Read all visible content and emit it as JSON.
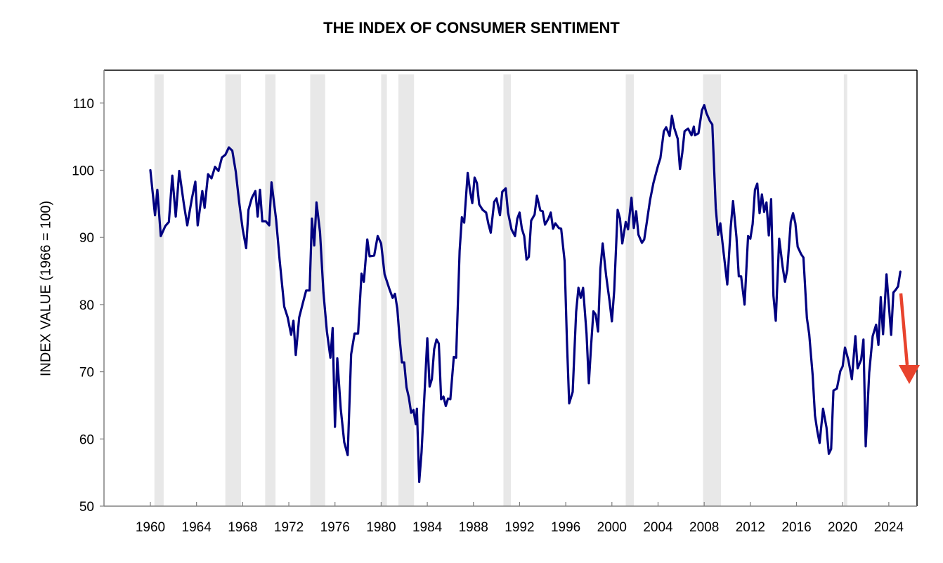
{
  "chart_data": {
    "type": "line",
    "title": "THE INDEX OF CONSUMER SENTIMENT",
    "xlabel": "",
    "ylabel": "INDEX VALUE (1966 = 100)",
    "xlim": [
      1957.9,
      2026.5
    ],
    "ylim": [
      50,
      115
    ],
    "x_ticks": [
      1960,
      1964,
      1968,
      1972,
      1976,
      1980,
      1984,
      1988,
      1992,
      1996,
      2000,
      2004,
      2008,
      2012,
      2016,
      2020,
      2024
    ],
    "x_tick_labels": [
      "1960",
      "1964",
      "1968",
      "1972",
      "1976",
      "1980",
      "1984",
      "1988",
      "1992",
      "1996",
      "2000",
      "2004",
      "2008",
      "2012",
      "2016",
      "2020",
      "2024"
    ],
    "y_ticks": [
      50,
      60,
      70,
      80,
      90,
      100,
      110
    ],
    "y_tick_labels": [
      "50",
      "60",
      "70",
      "80",
      "90",
      "100",
      "110"
    ],
    "grid": false,
    "legend": "none",
    "colors": {
      "line": "#000080",
      "recession_band": "#e8e8e8",
      "arrow": "#e8432d",
      "axis": "#808080",
      "frame": "#000000"
    },
    "recession_bands": [
      [
        1960.35,
        1961.15
      ],
      [
        1966.5,
        1967.85
      ],
      [
        1969.95,
        1970.85
      ],
      [
        1973.85,
        1975.15
      ],
      [
        1980.0,
        1980.5
      ],
      [
        1981.5,
        1982.85
      ],
      [
        1990.6,
        1991.25
      ],
      [
        2001.2,
        2001.9
      ],
      [
        2007.9,
        2009.45
      ],
      [
        2020.1,
        2020.4
      ]
    ],
    "annotation": {
      "type": "arrow",
      "direction": "down",
      "from": [
        2024.2,
        81.8
      ],
      "to": [
        2024.9,
        68.3
      ]
    },
    "series": [
      {
        "name": "Index of Consumer Sentiment",
        "points": [
          [
            1960.0,
            100.0
          ],
          [
            1960.4,
            93.3
          ],
          [
            1960.6,
            97.1
          ],
          [
            1960.9,
            90.2
          ],
          [
            1961.3,
            91.7
          ],
          [
            1961.6,
            92.3
          ],
          [
            1961.9,
            99.2
          ],
          [
            1962.2,
            93.1
          ],
          [
            1962.5,
            99.9
          ],
          [
            1962.9,
            95.0
          ],
          [
            1963.2,
            91.8
          ],
          [
            1963.6,
            95.8
          ],
          [
            1963.9,
            98.3
          ],
          [
            1964.1,
            91.8
          ],
          [
            1964.5,
            96.9
          ],
          [
            1964.7,
            94.4
          ],
          [
            1965.0,
            99.4
          ],
          [
            1965.3,
            98.8
          ],
          [
            1965.6,
            100.5
          ],
          [
            1965.9,
            99.9
          ],
          [
            1966.2,
            101.9
          ],
          [
            1966.5,
            102.3
          ],
          [
            1966.8,
            103.4
          ],
          [
            1967.1,
            102.9
          ],
          [
            1967.4,
            99.8
          ],
          [
            1967.7,
            95.2
          ],
          [
            1968.0,
            91.2
          ],
          [
            1968.3,
            88.4
          ],
          [
            1968.5,
            94.1
          ],
          [
            1968.8,
            95.9
          ],
          [
            1969.1,
            96.9
          ],
          [
            1969.3,
            93.1
          ],
          [
            1969.5,
            97.1
          ],
          [
            1969.7,
            92.4
          ],
          [
            1970.0,
            92.4
          ],
          [
            1970.3,
            91.8
          ],
          [
            1970.5,
            98.2
          ],
          [
            1970.9,
            92.6
          ],
          [
            1971.2,
            86.7
          ],
          [
            1971.6,
            79.7
          ],
          [
            1971.9,
            78.1
          ],
          [
            1972.2,
            75.5
          ],
          [
            1972.4,
            77.6
          ],
          [
            1972.6,
            72.5
          ],
          [
            1972.9,
            78.1
          ],
          [
            1973.2,
            80.1
          ],
          [
            1973.5,
            82.1
          ],
          [
            1973.8,
            82.1
          ],
          [
            1974.0,
            92.8
          ],
          [
            1974.2,
            88.8
          ],
          [
            1974.4,
            95.2
          ],
          [
            1974.7,
            90.8
          ],
          [
            1975.0,
            81.8
          ],
          [
            1975.3,
            76.0
          ],
          [
            1975.6,
            72.1
          ],
          [
            1975.8,
            76.5
          ],
          [
            1976.0,
            61.8
          ],
          [
            1976.2,
            72.0
          ],
          [
            1976.5,
            64.5
          ],
          [
            1976.8,
            59.5
          ],
          [
            1977.1,
            57.6
          ],
          [
            1977.4,
            72.6
          ],
          [
            1977.7,
            75.7
          ],
          [
            1978.0,
            75.7
          ],
          [
            1978.3,
            84.6
          ],
          [
            1978.5,
            83.4
          ],
          [
            1978.8,
            89.7
          ],
          [
            1979.0,
            87.2
          ],
          [
            1979.4,
            87.3
          ],
          [
            1979.7,
            90.2
          ],
          [
            1980.0,
            89.1
          ],
          [
            1980.3,
            84.5
          ],
          [
            1980.7,
            82.4
          ],
          [
            1981.0,
            81.0
          ],
          [
            1981.2,
            81.6
          ],
          [
            1981.4,
            79.4
          ],
          [
            1981.6,
            75.0
          ],
          [
            1981.8,
            71.4
          ],
          [
            1982.0,
            71.4
          ],
          [
            1982.2,
            67.7
          ],
          [
            1982.4,
            66.2
          ],
          [
            1982.6,
            63.9
          ],
          [
            1982.8,
            64.3
          ],
          [
            1983.0,
            62.2
          ],
          [
            1983.1,
            64.5
          ],
          [
            1983.3,
            53.6
          ],
          [
            1983.5,
            58.0
          ],
          [
            1983.8,
            68.1
          ],
          [
            1984.0,
            75.0
          ],
          [
            1984.2,
            67.8
          ],
          [
            1984.4,
            68.9
          ],
          [
            1984.6,
            73.4
          ],
          [
            1984.8,
            74.8
          ],
          [
            1985.0,
            74.2
          ],
          [
            1985.2,
            65.9
          ],
          [
            1985.4,
            66.3
          ],
          [
            1985.6,
            64.9
          ],
          [
            1985.8,
            66.0
          ],
          [
            1986.0,
            65.9
          ],
          [
            1986.3,
            72.2
          ],
          [
            1986.5,
            72.1
          ],
          [
            1986.8,
            88.0
          ],
          [
            1987.0,
            93.0
          ],
          [
            1987.2,
            92.2
          ],
          [
            1987.5,
            99.6
          ],
          [
            1987.7,
            97.0
          ],
          [
            1987.9,
            95.1
          ],
          [
            1988.1,
            98.9
          ],
          [
            1988.3,
            98.1
          ],
          [
            1988.5,
            94.9
          ],
          [
            1988.8,
            94.1
          ],
          [
            1989.1,
            93.7
          ],
          [
            1989.3,
            92.0
          ],
          [
            1989.5,
            90.7
          ],
          [
            1989.8,
            95.3
          ],
          [
            1990.0,
            95.8
          ],
          [
            1990.3,
            93.3
          ],
          [
            1990.5,
            96.8
          ],
          [
            1990.8,
            97.3
          ],
          [
            1991.0,
            93.7
          ],
          [
            1991.3,
            91.2
          ],
          [
            1991.6,
            90.2
          ],
          [
            1991.8,
            92.8
          ],
          [
            1992.0,
            93.7
          ],
          [
            1992.2,
            91.3
          ],
          [
            1992.4,
            90.2
          ],
          [
            1992.6,
            86.7
          ],
          [
            1992.8,
            87.1
          ],
          [
            1993.0,
            92.5
          ],
          [
            1993.3,
            93.4
          ],
          [
            1993.5,
            96.2
          ],
          [
            1993.8,
            94.0
          ],
          [
            1994.0,
            93.9
          ],
          [
            1994.2,
            91.9
          ],
          [
            1994.5,
            92.8
          ],
          [
            1994.7,
            93.7
          ],
          [
            1994.9,
            91.3
          ],
          [
            1995.1,
            92.1
          ],
          [
            1995.4,
            91.4
          ],
          [
            1995.6,
            91.3
          ],
          [
            1995.9,
            86.5
          ],
          [
            1996.1,
            74.6
          ],
          [
            1996.3,
            65.3
          ],
          [
            1996.6,
            67.0
          ],
          [
            1996.9,
            78.9
          ],
          [
            1997.1,
            82.5
          ],
          [
            1997.3,
            81.0
          ],
          [
            1997.5,
            82.5
          ],
          [
            1997.8,
            75.7
          ],
          [
            1998.0,
            68.3
          ],
          [
            1998.2,
            73.9
          ],
          [
            1998.4,
            79.0
          ],
          [
            1998.6,
            78.5
          ],
          [
            1998.8,
            76.0
          ],
          [
            1999.0,
            85.3
          ],
          [
            1999.2,
            89.1
          ],
          [
            1999.5,
            84.3
          ],
          [
            1999.8,
            80.5
          ],
          [
            2000.0,
            77.5
          ],
          [
            2000.2,
            82.1
          ],
          [
            2000.5,
            94.1
          ],
          [
            2000.7,
            92.8
          ],
          [
            2000.9,
            89.1
          ],
          [
            2001.2,
            92.3
          ],
          [
            2001.4,
            91.2
          ],
          [
            2001.7,
            95.9
          ],
          [
            2001.9,
            91.4
          ],
          [
            2002.1,
            93.9
          ],
          [
            2002.3,
            90.4
          ],
          [
            2002.6,
            89.2
          ],
          [
            2002.8,
            89.7
          ],
          [
            2003.0,
            92.0
          ],
          [
            2003.3,
            95.5
          ],
          [
            2003.6,
            98.1
          ],
          [
            2004.0,
            100.7
          ],
          [
            2004.2,
            101.8
          ],
          [
            2004.5,
            105.8
          ],
          [
            2004.7,
            106.4
          ],
          [
            2005.0,
            105.1
          ],
          [
            2005.2,
            108.1
          ],
          [
            2005.4,
            106.3
          ],
          [
            2005.7,
            104.7
          ],
          [
            2005.9,
            100.2
          ],
          [
            2006.1,
            102.6
          ],
          [
            2006.3,
            105.8
          ],
          [
            2006.6,
            106.2
          ],
          [
            2006.9,
            105.2
          ],
          [
            2007.1,
            106.5
          ],
          [
            2007.2,
            105.2
          ],
          [
            2007.5,
            105.5
          ],
          [
            2007.8,
            108.9
          ],
          [
            2008.0,
            109.7
          ],
          [
            2008.2,
            108.5
          ],
          [
            2008.5,
            107.3
          ],
          [
            2008.7,
            106.8
          ],
          [
            2009.0,
            94.4
          ],
          [
            2009.2,
            90.4
          ],
          [
            2009.4,
            92.1
          ],
          [
            2009.6,
            89.0
          ],
          [
            2010.0,
            83.0
          ],
          [
            2010.3,
            91.5
          ],
          [
            2010.5,
            95.4
          ],
          [
            2010.8,
            90.0
          ],
          [
            2011.0,
            84.2
          ],
          [
            2011.2,
            84.2
          ],
          [
            2011.5,
            80.0
          ],
          [
            2011.8,
            90.2
          ],
          [
            2012.0,
            89.8
          ],
          [
            2012.2,
            92.0
          ],
          [
            2012.4,
            97.1
          ],
          [
            2012.6,
            98.0
          ],
          [
            2012.8,
            93.6
          ],
          [
            2013.0,
            96.4
          ],
          [
            2013.2,
            93.8
          ],
          [
            2013.4,
            95.2
          ],
          [
            2013.6,
            90.3
          ],
          [
            2013.8,
            95.7
          ],
          [
            2014.0,
            81.3
          ],
          [
            2014.2,
            77.6
          ],
          [
            2014.5,
            89.8
          ],
          [
            2014.8,
            85.6
          ],
          [
            2015.0,
            83.4
          ],
          [
            2015.2,
            85.2
          ],
          [
            2015.5,
            92.3
          ],
          [
            2015.7,
            93.6
          ],
          [
            2015.9,
            92.1
          ],
          [
            2016.1,
            88.6
          ],
          [
            2016.4,
            87.5
          ],
          [
            2016.6,
            87.0
          ],
          [
            2016.9,
            78.0
          ],
          [
            2017.1,
            75.6
          ],
          [
            2017.4,
            69.5
          ],
          [
            2017.6,
            63.5
          ],
          [
            2017.8,
            61.2
          ],
          [
            2018.0,
            59.4
          ],
          [
            2018.3,
            64.5
          ],
          [
            2018.6,
            61.7
          ],
          [
            2018.8,
            57.8
          ],
          [
            2019.0,
            58.5
          ],
          [
            2019.2,
            67.2
          ],
          [
            2019.5,
            67.5
          ],
          [
            2019.8,
            70.1
          ],
          [
            2020.0,
            70.8
          ],
          [
            2020.2,
            73.6
          ],
          [
            2020.5,
            71.7
          ],
          [
            2020.8,
            68.9
          ],
          [
            2021.1,
            75.3
          ],
          [
            2021.3,
            70.5
          ],
          [
            2021.6,
            71.8
          ],
          [
            2021.8,
            74.8
          ],
          [
            2022.0,
            58.9
          ],
          [
            2022.3,
            69.9
          ],
          [
            2022.6,
            75.3
          ],
          [
            2022.9,
            77.0
          ],
          [
            2023.1,
            74.0
          ],
          [
            2023.3,
            81.1
          ],
          [
            2023.5,
            75.6
          ],
          [
            2023.8,
            84.5
          ],
          [
            2024.0,
            80.0
          ],
          [
            2024.2,
            75.5
          ],
          [
            2024.4,
            81.8
          ],
          [
            2024.6,
            82.2
          ],
          [
            2024.8,
            82.7
          ],
          [
            2025.0,
            84.9
          ]
        ]
      }
    ]
  }
}
